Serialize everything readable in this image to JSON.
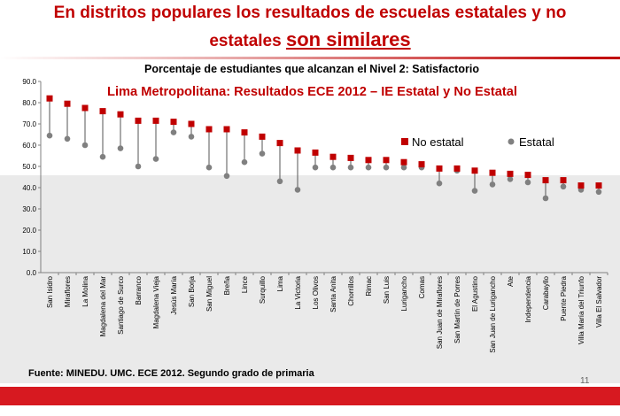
{
  "headline": {
    "line1": "En distritos populares los resultados de  escuelas estatales y no",
    "line2_prefix": "estatales ",
    "line2_emphasis": "son similares"
  },
  "source": "Fuente: MINEDU. UMC. ECE 2012. Segundo grado de primaria",
  "slide_number": "11",
  "colors": {
    "headline": "#c00000",
    "no_estatal": "#c00000",
    "estatal": "#808080",
    "bottom_bar": "#d71920",
    "band": "#eaeaea"
  },
  "chart_data": {
    "type": "scatter",
    "title": "Porcentaje de estudiantes que alcanzan el Nivel 2: Satisfactorio",
    "subtitle": "Lima Metropolitana: Resultados ECE 2012 – IE Estatal y No Estatal",
    "xlabel": "",
    "ylabel": "",
    "ylim": [
      0,
      90
    ],
    "yticks": [
      "0.0",
      "10.0",
      "20.0",
      "30.0",
      "40.0",
      "50.0",
      "60.0",
      "70.0",
      "80.0",
      "90.0"
    ],
    "grid": false,
    "legend_position": "right",
    "categories": [
      "San Isidro",
      "Miraflores",
      "La Molina",
      "Magdalena del Mar",
      "Santiago de Surco",
      "Barranco",
      "Magdalena Vieja",
      "Jesús María",
      "San Borja",
      "San Miguel",
      "Breña",
      "Lince",
      "Surquillo",
      "Lima",
      "La Victoria",
      "Los Olivos",
      "Santa Anita",
      "Chorrillos",
      "Rimac",
      "San Luis",
      "Lurigancho",
      "Comas",
      "San Juan de Miraflores",
      "San Martín de Porres",
      "El Agustino",
      "San Juan de Lurigancho",
      "Ate",
      "Independencia",
      "Carabayllo",
      "Puente Piedra",
      "Villa María del Triunfo",
      "Villa El Salvador"
    ],
    "series": [
      {
        "name": "No estatal",
        "values": [
          82,
          79.5,
          77.5,
          76,
          74.5,
          71.5,
          71.5,
          71,
          70,
          67.5,
          67.5,
          66,
          64,
          61,
          57.5,
          56.5,
          54.5,
          54,
          53,
          53,
          52,
          51,
          49,
          49,
          48,
          47,
          46.5,
          46,
          43.5,
          43.5,
          41,
          41
        ]
      },
      {
        "name": "Estatal",
        "values": [
          64.5,
          63,
          60,
          54.5,
          58.5,
          50,
          53.5,
          66,
          64,
          49.5,
          45.5,
          52,
          56,
          43,
          39,
          49.5,
          49.5,
          49.5,
          49.5,
          49.5,
          49.5,
          49.5,
          42,
          48,
          38.5,
          41.5,
          44,
          42.5,
          35,
          40.5,
          39,
          38
        ]
      }
    ]
  }
}
